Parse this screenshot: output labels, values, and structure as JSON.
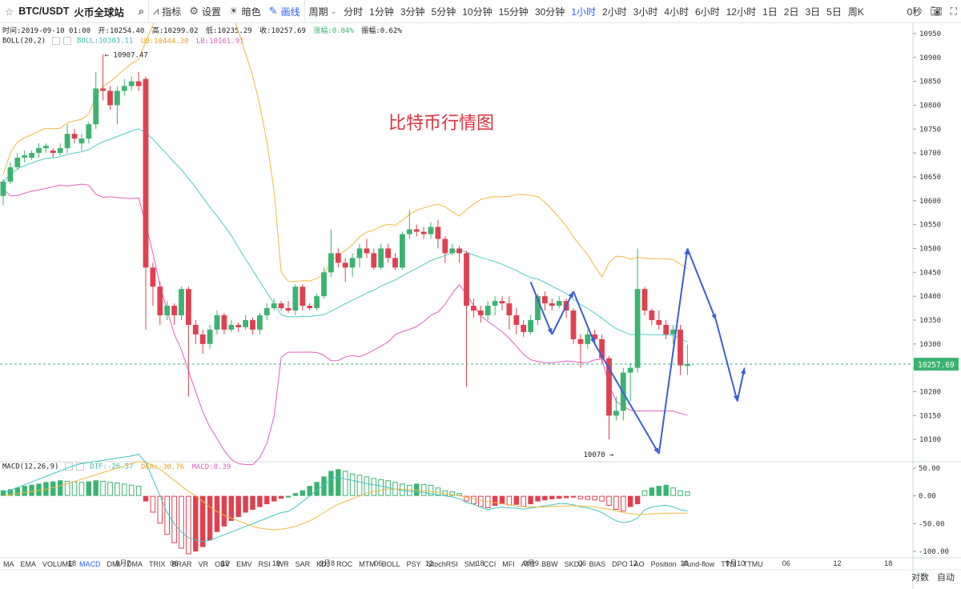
{
  "toolbar": {
    "symbol": "BTC/USDT",
    "exchange": "火币全球站",
    "indicators": "指标",
    "settings": "设置",
    "theme": "暗色",
    "draw": "画线",
    "period": "周期",
    "intervals": [
      "分时",
      "1分钟",
      "3分钟",
      "5分钟",
      "10分钟",
      "15分钟",
      "30分钟",
      "1小时",
      "2小时",
      "3小时",
      "4小时",
      "6小时",
      "12小时",
      "1日",
      "2日",
      "3日",
      "5日",
      "周K"
    ],
    "active_interval": "1小时",
    "countdown": "0秒",
    "icons": [
      "star-icon",
      "search-icon",
      "indicators-icon",
      "gear-icon",
      "theme-icon",
      "pencil-icon",
      "chevron-down-icon",
      "camera-icon",
      "fullscreen-icon"
    ]
  },
  "info": {
    "time": "时间:2019-09-10 01:00",
    "open": "开:10254.40",
    "high": "高:10299.02",
    "low": "低:10235.29",
    "close": "收:10257.69",
    "change": "涨幅:0.04%",
    "amplitude": "振幅:0.62%"
  },
  "boll": {
    "name": "BOLL(20,2)",
    "mid": "BOLL:10303.11",
    "ub": "UB:10444.30",
    "lb": "LB:10161.91"
  },
  "macd_info": {
    "name": "MACD(12,26,9)",
    "dif": "DIF:-26.57",
    "dea": "DEA:-30.76",
    "macd": "MACD:8.39"
  },
  "indicators": [
    "MA",
    "EMA",
    "VOLUME",
    "MACD",
    "DMI",
    "DMA",
    "TRIX",
    "BRAR",
    "VR",
    "OBV",
    "EMV",
    "RSI",
    "WR",
    "SAR",
    "KDJ",
    "ROC",
    "MTM",
    "BOLL",
    "PSY",
    "StochRSI",
    "SMI",
    "CCI",
    "MFI",
    "ATR",
    "BBW",
    "SKDJ",
    "BIAS",
    "DPO",
    "AO",
    "Position",
    "Fund-flow",
    "TTSI",
    "TTMU"
  ],
  "active_indicator": "MACD",
  "buttons": {
    "log": "对数",
    "auto": "自动"
  },
  "annotation_title": "比特币行情图",
  "colors": {
    "up": "#3cb371",
    "down": "#e0404f",
    "mid": "#4ecdc4",
    "ub": "#f5b740",
    "lb": "#e060c0",
    "dif": "#40c4c0",
    "dea": "#f5b740",
    "arrow": "#3a5fd9",
    "accent": "#2962ff"
  },
  "chart_data": {
    "type": "candlestick",
    "interval": "1小时",
    "price_axis": {
      "ticks": [
        10100,
        10150,
        10200,
        10250,
        10300,
        10350,
        10400,
        10450,
        10500,
        10550,
        10600,
        10650,
        10700,
        10750,
        10800,
        10850,
        10900,
        10950
      ],
      "range": [
        10055,
        10970
      ]
    },
    "current_price": "10257.69",
    "high_label": "10907.47",
    "low_label": "10070",
    "time_axis": [
      "18",
      "9月7",
      "06",
      "12",
      "18",
      "9月8",
      "06",
      "12",
      "18",
      "9月9",
      "06",
      "12",
      "18",
      "9月10",
      "06",
      "12",
      "18"
    ],
    "macd_axis": {
      "ticks": [
        "50.00",
        "0.00",
        "-50.00",
        "-100.00"
      ],
      "range": [
        -110,
        60
      ]
    },
    "candles": [
      [
        10610,
        10640,
        10590,
        10645
      ],
      [
        10640,
        10670,
        10635,
        10680
      ],
      [
        10670,
        10690,
        10665,
        10700
      ],
      [
        10690,
        10695,
        10680,
        10705
      ],
      [
        10690,
        10700,
        10685,
        10705
      ],
      [
        10700,
        10710,
        10690,
        10720
      ],
      [
        10710,
        10715,
        10700,
        10720
      ],
      [
        10705,
        10700,
        10690,
        10710
      ],
      [
        10700,
        10710,
        10695,
        10720
      ],
      [
        10710,
        10740,
        10700,
        10760
      ],
      [
        10740,
        10730,
        10720,
        10750
      ],
      [
        10720,
        10730,
        10705,
        10740
      ],
      [
        10730,
        10760,
        10720,
        10765
      ],
      [
        10760,
        10835,
        10750,
        10870
      ],
      [
        10835,
        10830,
        10810,
        10907
      ],
      [
        10830,
        10800,
        10790,
        10840
      ],
      [
        10800,
        10830,
        10760,
        10840
      ],
      [
        10830,
        10840,
        10820,
        10855
      ],
      [
        10840,
        10850,
        10830,
        10860
      ],
      [
        10850,
        10840,
        10830,
        10870
      ],
      [
        10855,
        10460,
        10330,
        10860
      ],
      [
        10460,
        10420,
        10380,
        10470
      ],
      [
        10420,
        10360,
        10340,
        10430
      ],
      [
        10360,
        10380,
        10350,
        10390
      ],
      [
        10380,
        10360,
        10340,
        10385
      ],
      [
        10360,
        10415,
        10350,
        10420
      ],
      [
        10415,
        10340,
        10190,
        10420
      ],
      [
        10340,
        10320,
        10300,
        10350
      ],
      [
        10320,
        10300,
        10280,
        10330
      ],
      [
        10300,
        10330,
        10290,
        10340
      ],
      [
        10330,
        10360,
        10320,
        10370
      ],
      [
        10360,
        10330,
        10320,
        10365
      ],
      [
        10330,
        10340,
        10325,
        10350
      ],
      [
        10340,
        10335,
        10325,
        10345
      ],
      [
        10335,
        10350,
        10330,
        10360
      ],
      [
        10350,
        10330,
        10320,
        10355
      ],
      [
        10330,
        10360,
        10320,
        10365
      ],
      [
        10360,
        10375,
        10350,
        10385
      ],
      [
        10375,
        10385,
        10370,
        10395
      ],
      [
        10385,
        10375,
        10370,
        10390
      ],
      [
        10375,
        10370,
        10365,
        10390
      ],
      [
        10370,
        10420,
        10360,
        10425
      ],
      [
        10420,
        10380,
        10370,
        10425
      ],
      [
        10380,
        10375,
        10370,
        10385
      ],
      [
        10375,
        10400,
        10370,
        10405
      ],
      [
        10400,
        10450,
        10395,
        10460
      ],
      [
        10450,
        10490,
        10440,
        10540
      ],
      [
        10490,
        10470,
        10460,
        10500
      ],
      [
        10470,
        10460,
        10430,
        10480
      ],
      [
        10460,
        10480,
        10440,
        10490
      ],
      [
        10480,
        10500,
        10460,
        10510
      ],
      [
        10500,
        10490,
        10480,
        10520
      ],
      [
        10490,
        10460,
        10455,
        10500
      ],
      [
        10460,
        10500,
        10455,
        10510
      ],
      [
        10500,
        10480,
        10470,
        10510
      ],
      [
        10480,
        10460,
        10455,
        10490
      ],
      [
        10460,
        10530,
        10455,
        10535
      ],
      [
        10530,
        10540,
        10520,
        10580
      ],
      [
        10540,
        10535,
        10525,
        10550
      ],
      [
        10535,
        10530,
        10520,
        10545
      ],
      [
        10530,
        10545,
        10520,
        10555
      ],
      [
        10545,
        10520,
        10500,
        10560
      ],
      [
        10520,
        10490,
        10470,
        10525
      ],
      [
        10490,
        10500,
        10485,
        10510
      ],
      [
        10500,
        10490,
        10470,
        10505
      ],
      [
        10490,
        10380,
        10210,
        10495
      ],
      [
        10380,
        10370,
        10355,
        10395
      ],
      [
        10370,
        10360,
        10345,
        10380
      ],
      [
        10360,
        10380,
        10350,
        10390
      ],
      [
        10380,
        10390,
        10360,
        10400
      ],
      [
        10390,
        10385,
        10370,
        10400
      ],
      [
        10385,
        10360,
        10330,
        10400
      ],
      [
        10360,
        10340,
        10320,
        10375
      ],
      [
        10340,
        10325,
        10315,
        10350
      ],
      [
        10325,
        10350,
        10320,
        10360
      ],
      [
        10350,
        10400,
        10340,
        10405
      ],
      [
        10400,
        10385,
        10370,
        10410
      ],
      [
        10385,
        10380,
        10370,
        10395
      ],
      [
        10380,
        10390,
        10375,
        10400
      ],
      [
        10390,
        10370,
        10355,
        10395
      ],
      [
        10370,
        10310,
        10300,
        10375
      ],
      [
        10310,
        10300,
        10250,
        10320
      ],
      [
        10300,
        10320,
        10290,
        10330
      ],
      [
        10320,
        10310,
        10300,
        10330
      ],
      [
        10310,
        10270,
        10260,
        10320
      ],
      [
        10270,
        10150,
        10100,
        10275
      ],
      [
        10150,
        10160,
        10140,
        10190
      ],
      [
        10160,
        10240,
        10140,
        10250
      ],
      [
        10240,
        10250,
        10180,
        10260
      ],
      [
        10250,
        10415,
        10240,
        10500
      ],
      [
        10415,
        10370,
        10360,
        10420
      ],
      [
        10370,
        10350,
        10340,
        10375
      ],
      [
        10350,
        10340,
        10330,
        10370
      ],
      [
        10340,
        10320,
        10310,
        10350
      ],
      [
        10320,
        10330,
        10300,
        10340
      ],
      [
        10330,
        10255,
        10235,
        10340
      ],
      [
        10254,
        10258,
        10235,
        10299
      ]
    ],
    "macd_hist": [
      10,
      12,
      15,
      18,
      20,
      22,
      25,
      26,
      28,
      27,
      26,
      25,
      26,
      28,
      27,
      25,
      24,
      22,
      20,
      18,
      -10,
      -30,
      -50,
      -70,
      -85,
      -95,
      -105,
      -100,
      -92,
      -80,
      -65,
      -55,
      -45,
      -38,
      -30,
      -25,
      -20,
      -15,
      -10,
      -5,
      0,
      5,
      10,
      18,
      25,
      35,
      45,
      48,
      45,
      40,
      38,
      35,
      32,
      30,
      28,
      25,
      22,
      20,
      22,
      21,
      20,
      15,
      10,
      8,
      5,
      -10,
      -15,
      -20,
      -22,
      -18,
      -15,
      -17,
      -16,
      -20,
      -15,
      -10,
      -8,
      -6,
      -5,
      -4,
      -3,
      -6,
      -7,
      -8,
      -10,
      -18,
      -25,
      -28,
      -20,
      -15,
      10,
      15,
      18,
      20,
      15,
      10,
      8
    ],
    "dif": [
      5,
      10,
      15,
      20,
      25,
      30,
      35,
      40,
      45,
      50,
      55,
      58,
      60,
      62,
      64,
      66,
      68,
      70,
      72,
      75,
      60,
      30,
      0,
      -30,
      -50,
      -65,
      -75,
      -80,
      -82,
      -80,
      -75,
      -70,
      -65,
      -60,
      -55,
      -50,
      -45,
      -40,
      -35,
      -30,
      -28,
      -20,
      -10,
      0,
      10,
      20,
      30,
      35,
      30,
      28,
      25,
      22,
      20,
      18,
      15,
      12,
      10,
      8,
      8,
      6,
      4,
      2,
      0,
      -2,
      -5,
      -12,
      -15,
      -20,
      -25,
      -22,
      -20,
      -22,
      -22,
      -24,
      -22,
      -20,
      -18,
      -16,
      -14,
      -14,
      -16,
      -20,
      -22,
      -25,
      -30,
      -38,
      -45,
      -48,
      -46,
      -40,
      -25,
      -20,
      -18,
      -17,
      -20,
      -25,
      -27
    ],
    "dea": [
      0,
      2,
      4,
      6,
      8,
      10,
      12,
      15,
      18,
      22,
      26,
      30,
      34,
      38,
      42,
      46,
      50,
      54,
      58,
      62,
      60,
      55,
      48,
      38,
      28,
      18,
      8,
      0,
      -10,
      -20,
      -28,
      -35,
      -40,
      -45,
      -50,
      -55,
      -58,
      -60,
      -61,
      -60,
      -58,
      -55,
      -50,
      -45,
      -38,
      -30,
      -22,
      -15,
      -10,
      -5,
      0,
      5,
      8,
      10,
      12,
      12,
      12,
      11,
      10,
      9,
      8,
      6,
      4,
      2,
      0,
      -2,
      -5,
      -8,
      -10,
      -12,
      -14,
      -16,
      -18,
      -20,
      -20,
      -20,
      -20,
      -19,
      -19,
      -18,
      -18,
      -18,
      -19,
      -20,
      -22,
      -24,
      -27,
      -30,
      -32,
      -34,
      -33,
      -32,
      -32,
      -31,
      -31,
      -31,
      -31
    ]
  }
}
